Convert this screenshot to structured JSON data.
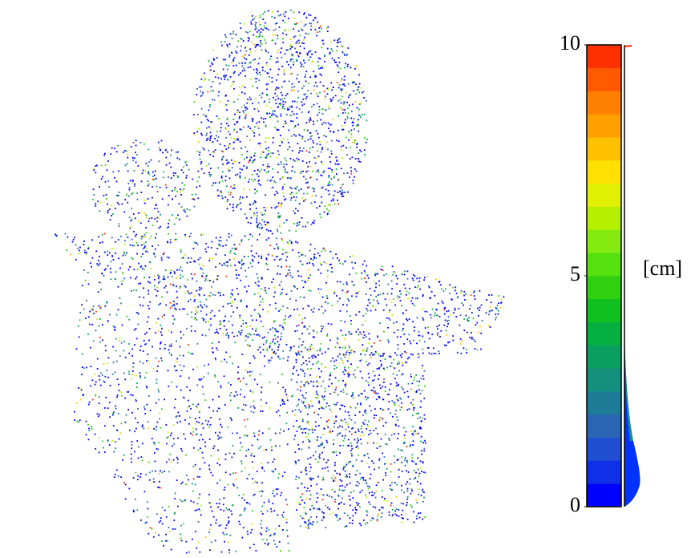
{
  "chart_data": {
    "type": "colorbar",
    "unit_label": "[cm]",
    "ylim": [
      0,
      10
    ],
    "yticks": [
      0,
      5,
      10
    ],
    "colors": [
      "#0000ff",
      "#1030e8",
      "#1f4fd0",
      "#2a66b4",
      "#1e7c96",
      "#14907c",
      "#0a9f60",
      "#06b040",
      "#10c020",
      "#30d010",
      "#55e010",
      "#85ea10",
      "#b4f000",
      "#e0f000",
      "#ffe000",
      "#ffc000",
      "#ffa000",
      "#ff8000",
      "#ff5a00",
      "#ff3000"
    ]
  }
}
